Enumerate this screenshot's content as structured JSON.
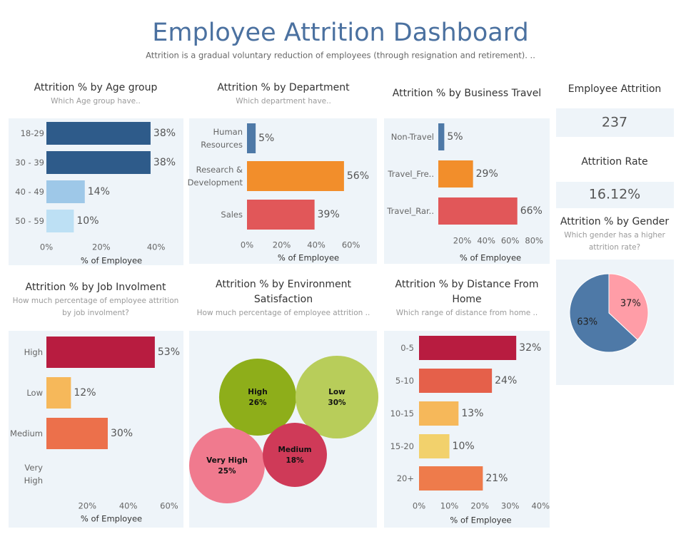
{
  "header": {
    "title": "Employee Attrition Dashboard",
    "subtitle": "Attrition is a gradual voluntary reduction of employees (through resignation and retirement). .."
  },
  "kpis": [
    {
      "label": "Employee Attrition",
      "value": "237"
    },
    {
      "label": "Attrition Rate",
      "value": "16.12%"
    }
  ],
  "chart_data": [
    {
      "type": "hbar",
      "title": "Attrition % by Age group",
      "subtitle": "Which Age group have..",
      "x_label": "% of Employee",
      "categories": [
        "18-29",
        "30 - 39",
        "40 - 49",
        "50 - 59"
      ],
      "values": [
        38,
        38,
        14,
        10
      ],
      "value_labels": [
        "38%",
        "38%",
        "14%",
        "10%"
      ],
      "colors": [
        "#2e5b8a",
        "#2e5b8a",
        "#9ec8e8",
        "#bde0f4"
      ],
      "xlim": [
        0,
        50
      ],
      "xticks": [
        {
          "value": 0,
          "label": "0%"
        },
        {
          "value": 20,
          "label": "20%"
        },
        {
          "value": 40,
          "label": "40%"
        }
      ]
    },
    {
      "type": "hbar",
      "title": "Attrition % by Department",
      "subtitle": "Which department have..",
      "x_label": "% of Employee",
      "categories": [
        "Human Resources",
        "Research & Development",
        "Sales"
      ],
      "values": [
        5,
        56,
        39
      ],
      "value_labels": [
        "5%",
        "56%",
        "39%"
      ],
      "colors": [
        "#4e79a7",
        "#f28e2b",
        "#e15759"
      ],
      "xlim": [
        0,
        75
      ],
      "xticks": [
        {
          "value": 0,
          "label": "0%"
        },
        {
          "value": 20,
          "label": "20%"
        },
        {
          "value": 40,
          "label": "40%"
        },
        {
          "value": 60,
          "label": "60%"
        }
      ]
    },
    {
      "type": "hbar",
      "title": "Attrition % by Business Travel",
      "x_label": "% of Employee",
      "categories": [
        "Non-Travel",
        "Travel_Fre..",
        "Travel_Rar.."
      ],
      "values": [
        5,
        29,
        66
      ],
      "value_labels": [
        "5%",
        "29%",
        "66%"
      ],
      "colors": [
        "#4e79a7",
        "#f28e2b",
        "#e15759"
      ],
      "xlim": [
        0,
        93
      ],
      "xticks": [
        {
          "value": 20,
          "label": "20%"
        },
        {
          "value": 40,
          "label": "40%"
        },
        {
          "value": 60,
          "label": "60%"
        },
        {
          "value": 80,
          "label": "80%"
        }
      ]
    },
    {
      "type": "pie",
      "title": "Attrition % by Gender",
      "subtitle": "Which gender has a higher attrition rate?",
      "values": [
        37,
        63
      ],
      "value_labels": [
        "37%",
        "63%"
      ],
      "colors": [
        "#ff9da7",
        "#4e79a7"
      ]
    },
    {
      "type": "hbar",
      "title": "Attrition % by Job Involment",
      "subtitle": "How much percentage of employee attrition by job involment?",
      "x_label": "% of Employee",
      "categories": [
        "High",
        "Low",
        "Medium",
        "Very High"
      ],
      "values": [
        53,
        12,
        30,
        null
      ],
      "value_labels": [
        "53%",
        "12%",
        "30%",
        null
      ],
      "colors": [
        "#b81c40",
        "#f6b85a",
        "#ec704b",
        "#ec704b"
      ],
      "xlim": [
        0,
        67
      ],
      "xticks": [
        {
          "value": 20,
          "label": "20%"
        },
        {
          "value": 40,
          "label": "40%"
        },
        {
          "value": 60,
          "label": "60%"
        }
      ]
    },
    {
      "type": "bubble",
      "title": "Attrition % by Environment Satisfaction",
      "subtitle": "How much percentage of employee attrition ..",
      "categories": [
        "High",
        "Low",
        "Very High",
        "Medium"
      ],
      "values": [
        26,
        30,
        25,
        18
      ],
      "value_labels": [
        "26%",
        "30%",
        "25%",
        "18%"
      ],
      "colors": [
        "#8eae1a",
        "#b8cd5a",
        "#f07a8e",
        "#cf3a58"
      ]
    },
    {
      "type": "hbar",
      "title": "Attrition % by Distance From Home",
      "subtitle": "Which range of distance from home ..",
      "x_label": "% of Employee",
      "categories": [
        "0-5",
        "5-10",
        "10-15",
        "15-20",
        "20+"
      ],
      "values": [
        32,
        24,
        13,
        10,
        21
      ],
      "value_labels": [
        "32%",
        "24%",
        "13%",
        "10%",
        "21%"
      ],
      "colors": [
        "#b81c40",
        "#e5604a",
        "#f6b85a",
        "#f2d16c",
        "#ee7b4b"
      ],
      "xlim": [
        0,
        43
      ],
      "xticks": [
        {
          "value": 0,
          "label": "0%"
        },
        {
          "value": 10,
          "label": "10%"
        },
        {
          "value": 20,
          "label": "20%"
        },
        {
          "value": 30,
          "label": "30%"
        },
        {
          "value": 40,
          "label": "40%"
        }
      ]
    }
  ]
}
